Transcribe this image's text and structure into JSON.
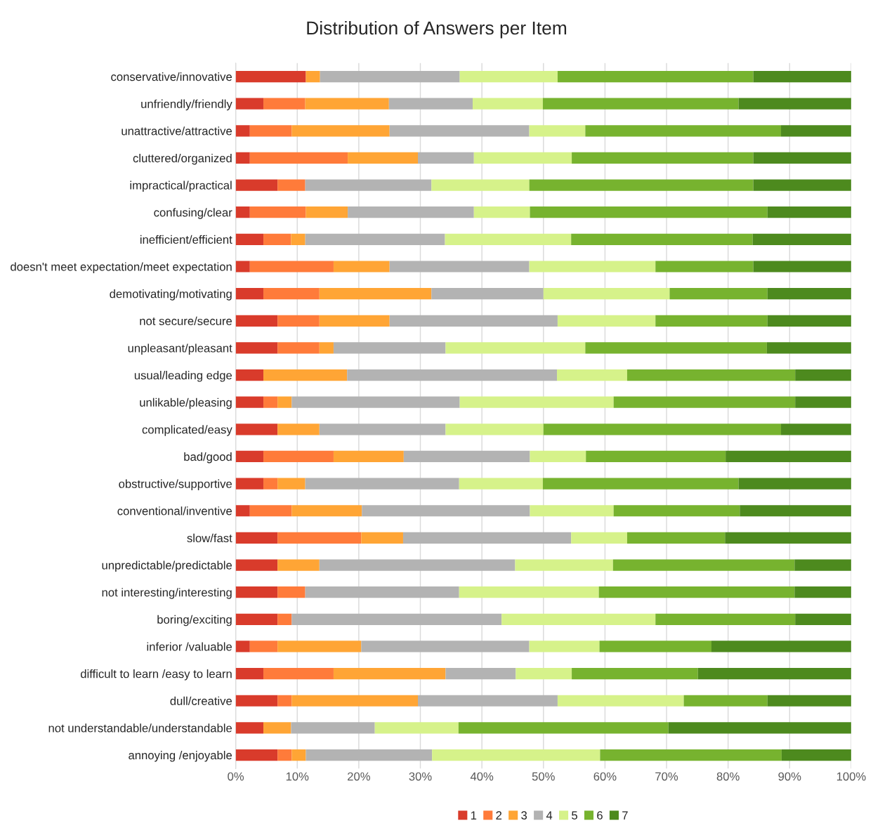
{
  "chart_data": {
    "type": "bar",
    "orientation": "horizontal",
    "stacked": true,
    "title": "Distribution of Answers per Item",
    "categories": [
      "conservative/innovative",
      "unfriendly/friendly",
      "unattractive/attractive",
      "cluttered/organized",
      "impractical/practical",
      "confusing/clear",
      "inefficient/efficient",
      "doesn't meet expectation/meet expectation",
      "demotivating/motivating",
      "not secure/secure",
      "unpleasant/pleasant",
      "usual/leading edge",
      "unlikable/pleasing",
      "complicated/easy",
      "bad/good",
      "obstructive/supportive",
      "conventional/inventive",
      "slow/fast",
      "unpredictable/predictable",
      "not interesting/interesting",
      "boring/exciting",
      "inferior /valuable",
      "difficult to learn /easy to learn",
      "dull/creative",
      "not understandable/understandable",
      "annoying /enjoyable"
    ],
    "series": [
      {
        "name": "1",
        "color": "#d93b2b",
        "values": [
          11.4,
          4.5,
          2.3,
          2.3,
          6.8,
          2.3,
          4.5,
          2.3,
          4.5,
          6.8,
          6.8,
          4.5,
          4.5,
          6.8,
          4.5,
          4.5,
          2.3,
          6.8,
          6.8,
          6.8,
          6.8,
          2.3,
          4.5,
          6.8,
          4.5,
          6.8
        ]
      },
      {
        "name": "2",
        "color": "#ff7b3a",
        "values": [
          0,
          6.8,
          6.8,
          15.9,
          4.5,
          9.1,
          4.5,
          13.6,
          9.1,
          6.8,
          6.8,
          0,
          2.3,
          0,
          11.4,
          2.3,
          6.8,
          13.6,
          0,
          4.5,
          2.3,
          4.5,
          11.4,
          2.3,
          0,
          2.3
        ]
      },
      {
        "name": "3",
        "color": "#ffa535",
        "values": [
          2.3,
          13.6,
          15.9,
          11.4,
          0,
          6.8,
          2.3,
          9.1,
          18.2,
          11.4,
          2.3,
          13.6,
          2.3,
          6.8,
          11.4,
          4.5,
          11.4,
          6.8,
          6.8,
          0,
          0,
          13.6,
          18.2,
          20.5,
          4.5,
          2.3
        ]
      },
      {
        "name": "4",
        "color": "#b3b3b3",
        "values": [
          22.7,
          13.6,
          22.7,
          9.1,
          20.5,
          20.5,
          22.7,
          22.7,
          18.2,
          27.3,
          18.2,
          34.1,
          27.3,
          20.5,
          20.5,
          25.0,
          27.3,
          27.3,
          31.8,
          25.0,
          34.1,
          27.3,
          11.4,
          22.7,
          13.6,
          20.5
        ]
      },
      {
        "name": "5",
        "color": "#d6f28a",
        "values": [
          15.9,
          11.4,
          9.1,
          15.9,
          15.9,
          9.1,
          20.5,
          20.5,
          20.5,
          15.9,
          22.7,
          11.4,
          25.0,
          15.9,
          9.1,
          13.6,
          13.6,
          9.1,
          15.9,
          22.7,
          25.0,
          11.4,
          9.1,
          20.5,
          13.6,
          27.3
        ]
      },
      {
        "name": "6",
        "color": "#77b32f",
        "values": [
          31.8,
          31.8,
          31.8,
          29.5,
          36.4,
          38.6,
          29.5,
          15.9,
          15.9,
          18.2,
          29.5,
          27.3,
          29.5,
          38.6,
          22.7,
          31.8,
          20.5,
          15.9,
          29.5,
          31.8,
          22.7,
          18.2,
          20.5,
          13.6,
          34.1,
          29.5
        ]
      },
      {
        "name": "7",
        "color": "#4d8a1e",
        "values": [
          15.9,
          18.3,
          11.4,
          15.9,
          15.9,
          13.6,
          16.0,
          15.9,
          13.6,
          13.6,
          13.7,
          9.1,
          9.1,
          11.4,
          20.4,
          18.3,
          18.1,
          20.5,
          9.2,
          9.2,
          9.1,
          22.7,
          24.9,
          13.6,
          29.7,
          11.3
        ]
      }
    ],
    "xlim": [
      0,
      100
    ],
    "xticks": [
      {
        "value": 0,
        "label": "0%"
      },
      {
        "value": 10,
        "label": "10%"
      },
      {
        "value": 20,
        "label": "20%"
      },
      {
        "value": 30,
        "label": "30%"
      },
      {
        "value": 40,
        "label": "40%"
      },
      {
        "value": 50,
        "label": "50%"
      },
      {
        "value": 60,
        "label": "60%"
      },
      {
        "value": 70,
        "label": "70%"
      },
      {
        "value": 80,
        "label": "80%"
      },
      {
        "value": 90,
        "label": "90%"
      },
      {
        "value": 100,
        "label": "100%"
      }
    ],
    "grid": "x",
    "legend": "bottom"
  }
}
